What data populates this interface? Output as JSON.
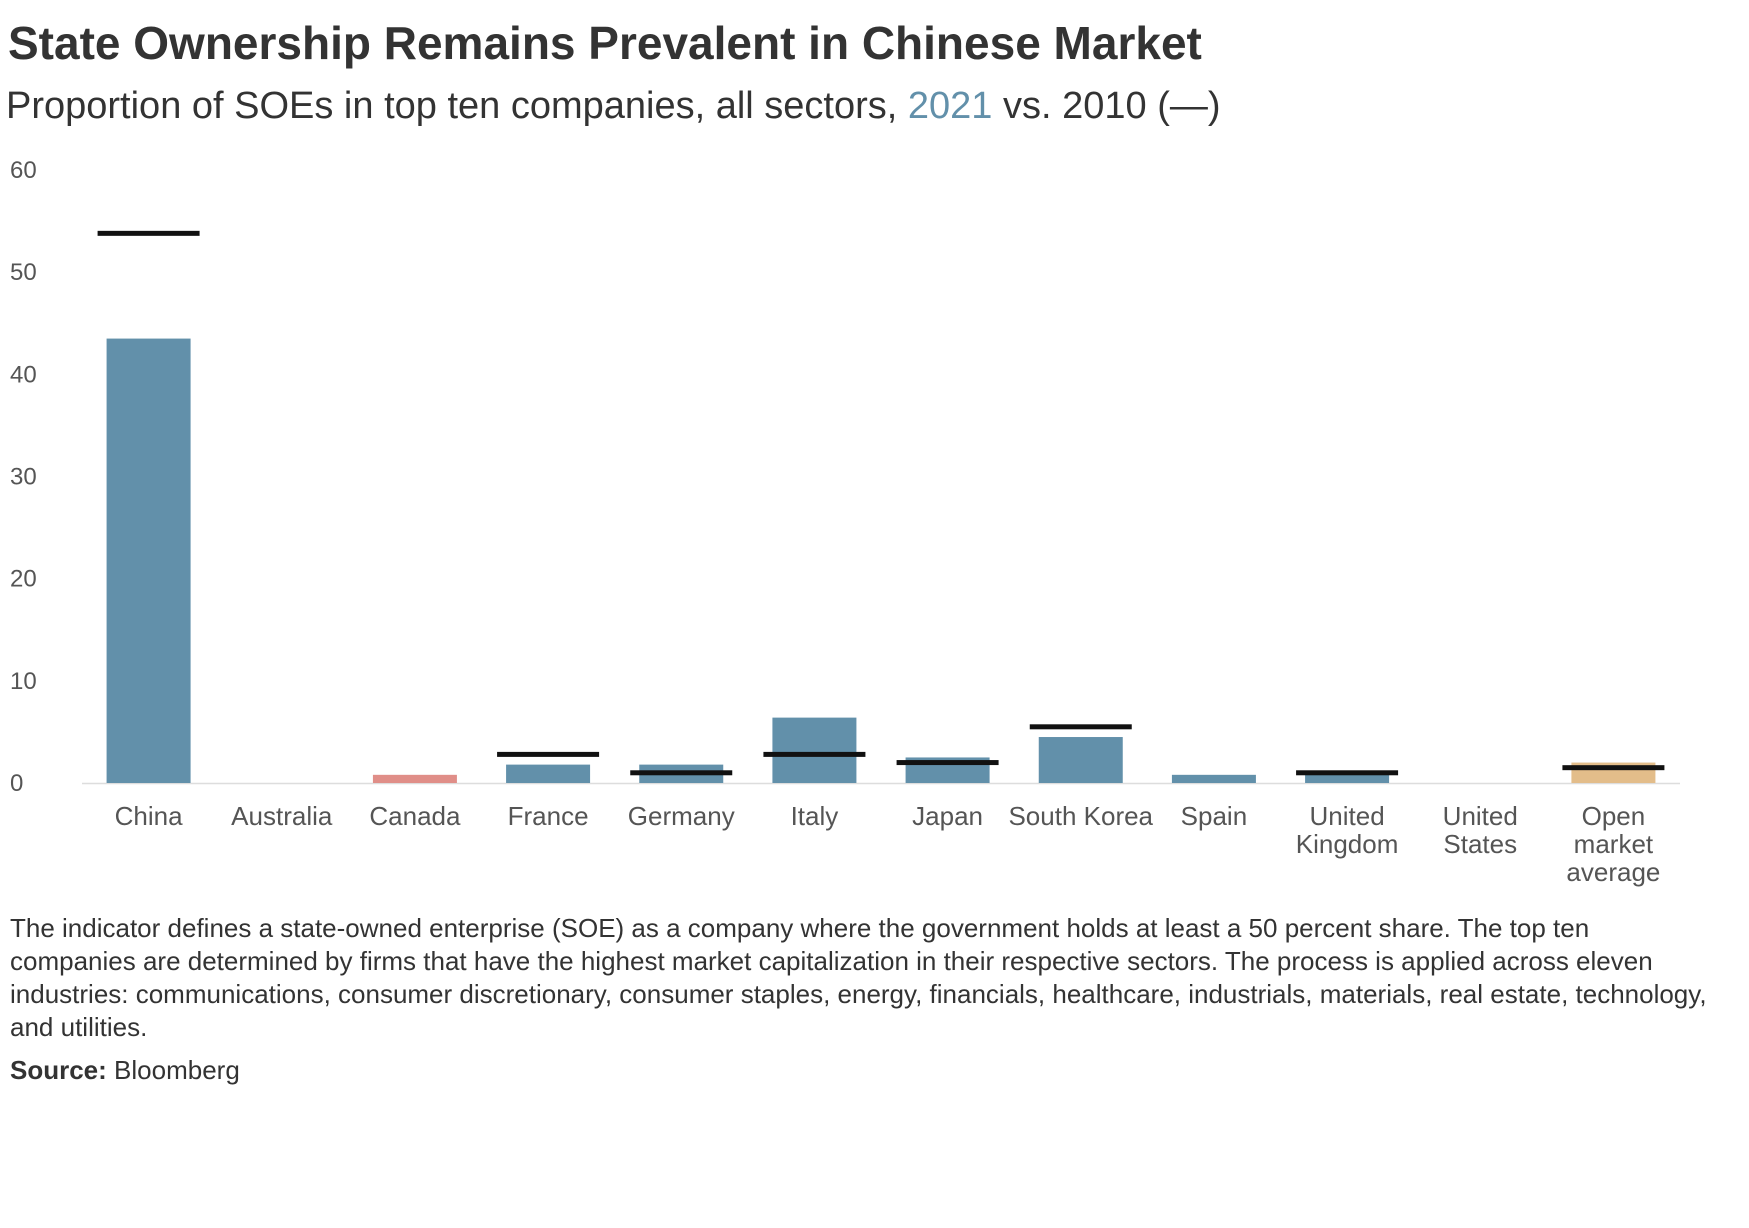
{
  "title": "State Ownership Remains Prevalent in Chinese Market",
  "subtitle": {
    "prefix": "Proportion of SOEs in top ten companies, all sectors, ",
    "highlight": "2021",
    "suffix": " vs. 2010 (—)"
  },
  "note": "The indicator defines a state-owned enterprise (SOE) as a company where the government holds at least a 50 percent share. The top ten companies are determined by firms that have the highest market capitalization in their respective sectors. The process is applied across eleven industries: communications, consumer discretionary, consumer staples, energy, financials, healthcare, industrials, materials, real estate, technology, and utilities.",
  "source": {
    "label": "Source:",
    "value": "Bloomberg"
  },
  "colors": {
    "bar_default": "#6290aa",
    "bar_canada": "#e08e88",
    "bar_average": "#e3bd8a",
    "marker_2010": "#111111",
    "baseline": "#dddddd"
  },
  "chart_data": {
    "type": "bar",
    "categories": [
      "China",
      "Australia",
      "Canada",
      "France",
      "Germany",
      "Italy",
      "Japan",
      "South Korea",
      "Spain",
      "United Kingdom",
      "United States",
      "Open market average"
    ],
    "category_lines": [
      [
        "China"
      ],
      [
        "Australia"
      ],
      [
        "Canada"
      ],
      [
        "France"
      ],
      [
        "Germany"
      ],
      [
        "Italy"
      ],
      [
        "Japan"
      ],
      [
        "South Korea"
      ],
      [
        "Spain"
      ],
      [
        "United",
        "Kingdom"
      ],
      [
        "United",
        "States"
      ],
      [
        "Open",
        "market",
        "average"
      ]
    ],
    "series": [
      {
        "name": "2021",
        "values": [
          43.5,
          0,
          0.8,
          1.8,
          1.8,
          6.4,
          2.5,
          4.5,
          0.8,
          0.9,
          0,
          2.0
        ]
      },
      {
        "name": "2010",
        "values": [
          53.8,
          null,
          null,
          2.8,
          1.0,
          2.8,
          2.0,
          5.5,
          null,
          1.0,
          null,
          1.5
        ]
      }
    ],
    "bar_colors": [
      "#6290aa",
      "#6290aa",
      "#e08e88",
      "#6290aa",
      "#6290aa",
      "#6290aa",
      "#6290aa",
      "#6290aa",
      "#6290aa",
      "#6290aa",
      "#6290aa",
      "#e3bd8a"
    ],
    "y_ticks": [
      0,
      10,
      20,
      30,
      40,
      50,
      60
    ],
    "ylim": [
      0,
      60
    ],
    "grid": false
  }
}
